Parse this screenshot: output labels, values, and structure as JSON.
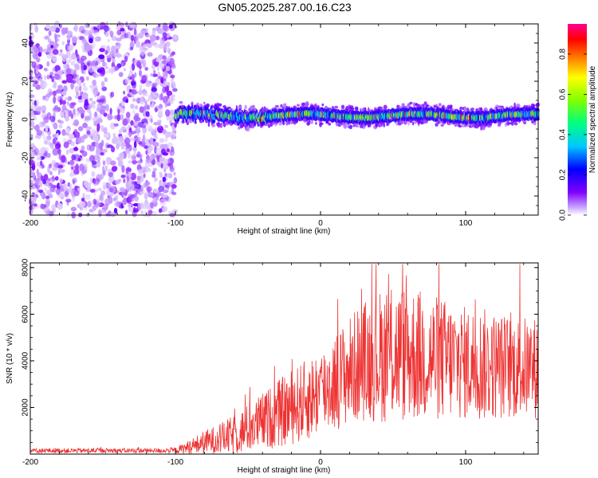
{
  "figure": {
    "title": "GN05.2025.287.00.16.C23"
  },
  "chart_data": [
    {
      "type": "heatmap",
      "name": "spectrogram",
      "xlabel": "Height of straight line (km)",
      "ylabel": "Frequency (Hz)",
      "xlim": [
        -200,
        150
      ],
      "ylim": [
        -50,
        50
      ],
      "xticks": [
        -200,
        -100,
        0,
        100
      ],
      "xtick_labels": [
        "-200",
        "-100",
        "0",
        "100"
      ],
      "yticks": [
        -40,
        -20,
        0,
        20,
        40
      ],
      "ytick_labels": [
        "-40",
        "-20",
        "0",
        "20",
        "40"
      ],
      "colorbar": {
        "label": "Normalized spectral amplitude",
        "range": [
          0,
          0.95
        ],
        "ticks": [
          0.0,
          0.2,
          0.4,
          0.6,
          0.8
        ],
        "tick_labels": [
          "0.0",
          "0.2",
          "0.4",
          "0.6",
          "0.8"
        ],
        "colors": [
          "#ffffff",
          "#8000ff",
          "#0000ff",
          "#00ffff",
          "#00ff00",
          "#ffff00",
          "#ff8000",
          "#ff0000",
          "#ff0080"
        ]
      },
      "regions": [
        {
          "x_range": [
            -200,
            -100
          ],
          "y_range": [
            -50,
            50
          ],
          "description": "broadband noise",
          "amplitude": [
            0.0,
            0.15
          ]
        },
        {
          "x_range": [
            -100,
            150
          ],
          "center_freq_hz": 2,
          "band_width_hz": 8,
          "amplitude": [
            0.1,
            0.95
          ]
        }
      ]
    },
    {
      "type": "line",
      "name": "snr",
      "xlabel": "Height of straight line (km)",
      "ylabel": "SNR (10 * v/v)",
      "xlim": [
        -200,
        150
      ],
      "ylim": [
        0,
        8200
      ],
      "xticks": [
        -200,
        -100,
        0,
        100
      ],
      "xtick_labels": [
        "-200",
        "-100",
        "0",
        "100"
      ],
      "yticks": [
        2000,
        4000,
        6000,
        8000
      ],
      "ytick_labels": [
        "2000",
        "4000",
        "6000",
        "8000"
      ],
      "series": [
        {
          "name": "SNR",
          "color": "#ee3333",
          "envelope": {
            "x": [
              -200,
              -110,
              -100,
              -90,
              -80,
              -70,
              -60,
              -50,
              -40,
              -30,
              -20,
              -10,
              0,
              10,
              20,
              30,
              40,
              50,
              60,
              70,
              80,
              90,
              100,
              110,
              120,
              130,
              140,
              150
            ],
            "mean": [
              150,
              150,
              160,
              300,
              500,
              650,
              800,
              1100,
              1400,
              1700,
              2000,
              2300,
              2700,
              3100,
              3600,
              4000,
              4200,
              4300,
              4300,
              4200,
              4100,
              4000,
              3900,
              3850,
              3800,
              3750,
              3700,
              3700
            ],
            "spread": [
              80,
              80,
              100,
              250,
              400,
              500,
              650,
              800,
              950,
              1100,
              1250,
              1350,
              1450,
              1600,
              1800,
              2000,
              2200,
              2300,
              2300,
              2200,
              2100,
              2000,
              1900,
              1900,
              1800,
              1750,
              1700,
              1700
            ]
          }
        }
      ]
    }
  ]
}
